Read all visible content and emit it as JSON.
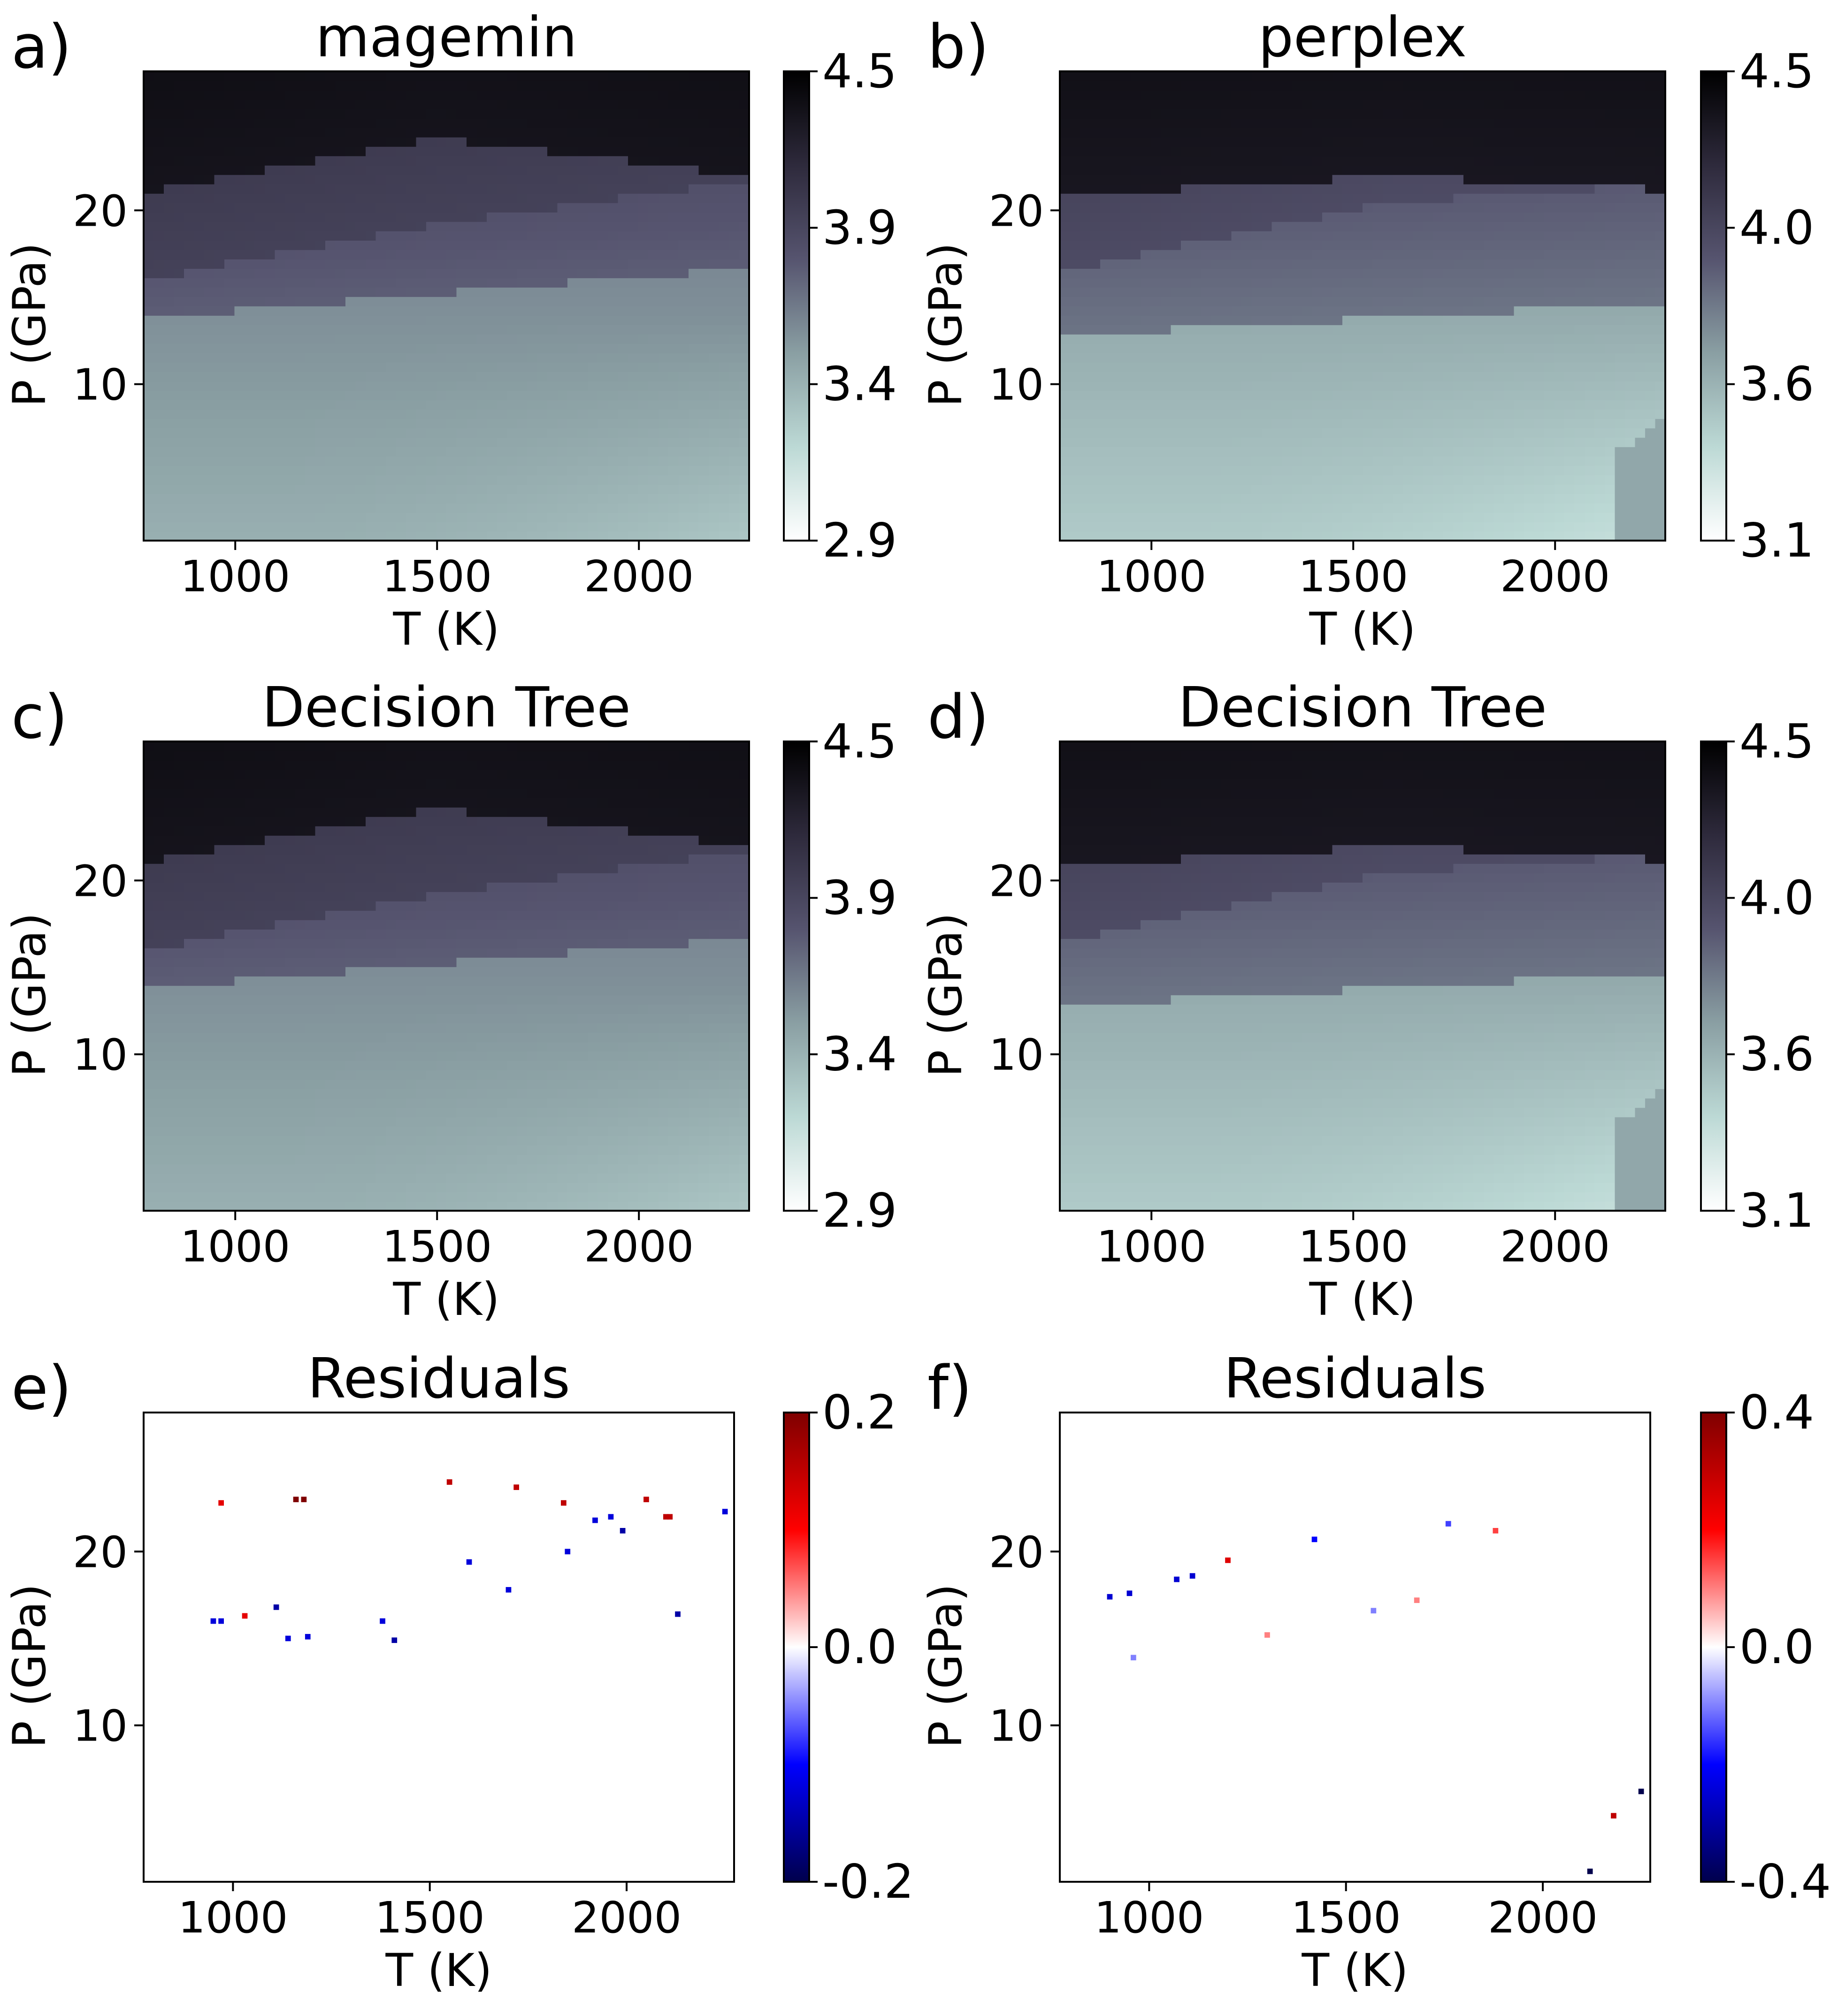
{
  "colors": {
    "density_colormap": [
      "#ffffff",
      "#bcd9d5",
      "#8a9fa3",
      "#56546f",
      "#2e2a3c",
      "#000000"
    ],
    "residual_colormap": [
      "#00004c",
      "#0000ff",
      "#ffffff",
      "#ff0000",
      "#7f0000"
    ],
    "axes_frame": "#000000",
    "background": "#ffffff"
  },
  "chart_data": [
    {
      "type": "heatmap",
      "panel_label": "a)",
      "title": "magemin",
      "kind": "density",
      "xlabel": "T (K)",
      "ylabel": "P (GPa)",
      "xlim": [
        773,
        2273
      ],
      "ylim": [
        1,
        28
      ],
      "xticks": [
        1000,
        1500,
        2000
      ],
      "yticks": [
        10,
        20
      ],
      "colorbar": {
        "min": 2.9,
        "max": 4.5,
        "ticks": [
          "2.9",
          "3.4",
          "3.9",
          "4.5"
        ]
      }
    },
    {
      "type": "heatmap",
      "panel_label": "b)",
      "title": "perplex",
      "kind": "density",
      "xlabel": "T (K)",
      "ylabel": "P (GPa)",
      "xlim": [
        773,
        2273
      ],
      "ylim": [
        1,
        28
      ],
      "xticks": [
        1000,
        1500,
        2000
      ],
      "yticks": [
        10,
        20
      ],
      "colorbar": {
        "min": 3.1,
        "max": 4.5,
        "ticks": [
          "3.1",
          "3.6",
          "4.0",
          "4.5"
        ]
      }
    },
    {
      "type": "heatmap",
      "panel_label": "c)",
      "title": "Decision Tree",
      "kind": "density",
      "xlabel": "T (K)",
      "ylabel": "P (GPa)",
      "xlim": [
        773,
        2273
      ],
      "ylim": [
        1,
        28
      ],
      "xticks": [
        1000,
        1500,
        2000
      ],
      "yticks": [
        10,
        20
      ],
      "colorbar": {
        "min": 2.9,
        "max": 4.5,
        "ticks": [
          "2.9",
          "3.4",
          "3.9",
          "4.5"
        ]
      }
    },
    {
      "type": "heatmap",
      "panel_label": "d)",
      "title": "Decision Tree",
      "kind": "density",
      "xlabel": "T (K)",
      "ylabel": "P (GPa)",
      "xlim": [
        773,
        2273
      ],
      "ylim": [
        1,
        28
      ],
      "xticks": [
        1000,
        1500,
        2000
      ],
      "yticks": [
        10,
        20
      ],
      "colorbar": {
        "min": 3.1,
        "max": 4.5,
        "ticks": [
          "3.1",
          "3.6",
          "4.0",
          "4.5"
        ]
      }
    },
    {
      "type": "heatmap",
      "panel_label": "e)",
      "title": "Residuals",
      "kind": "residual",
      "xlabel": "T (K)",
      "ylabel": "P (GPa)",
      "xlim": [
        773,
        2273
      ],
      "ylim": [
        1,
        28
      ],
      "xticks": [
        1000,
        1500,
        2000
      ],
      "yticks": [
        10,
        20
      ],
      "colorbar": {
        "min": -0.2,
        "max": 0.2,
        "ticks": [
          "-0.2",
          "0.0",
          "0.2"
        ]
      },
      "notable_cells": [
        {
          "T": 1160,
          "P": 23.0,
          "v": 0.2
        },
        {
          "T": 1180,
          "P": 23.0,
          "v": 0.2
        },
        {
          "T": 1550,
          "P": 24.0,
          "v": 0.15
        },
        {
          "T": 1720,
          "P": 23.7,
          "v": 0.15
        },
        {
          "T": 1840,
          "P": 22.8,
          "v": 0.15
        },
        {
          "T": 2050,
          "P": 23.0,
          "v": 0.15
        },
        {
          "T": 2100,
          "P": 22.0,
          "v": 0.15
        },
        {
          "T": 2110,
          "P": 22.0,
          "v": 0.15
        },
        {
          "T": 2250,
          "P": 22.3,
          "v": -0.12
        },
        {
          "T": 1990,
          "P": 21.2,
          "v": -0.15
        },
        {
          "T": 1920,
          "P": 21.8,
          "v": -0.12
        },
        {
          "T": 1960,
          "P": 22.0,
          "v": -0.12
        },
        {
          "T": 950,
          "P": 16.0,
          "v": -0.12
        },
        {
          "T": 970,
          "P": 16.0,
          "v": -0.12
        },
        {
          "T": 1030,
          "P": 16.3,
          "v": 0.12
        },
        {
          "T": 1110,
          "P": 16.8,
          "v": -0.15
        },
        {
          "T": 1140,
          "P": 15.0,
          "v": -0.12
        },
        {
          "T": 1190,
          "P": 15.1,
          "v": -0.12
        },
        {
          "T": 1380,
          "P": 16.0,
          "v": -0.12
        },
        {
          "T": 1410,
          "P": 14.9,
          "v": -0.15
        },
        {
          "T": 1600,
          "P": 19.4,
          "v": -0.12
        },
        {
          "T": 1700,
          "P": 17.8,
          "v": -0.12
        },
        {
          "T": 2130,
          "P": 16.4,
          "v": -0.15
        },
        {
          "T": 970,
          "P": 22.8,
          "v": 0.12
        },
        {
          "T": 1850,
          "P": 20.0,
          "v": -0.12
        }
      ]
    },
    {
      "type": "heatmap",
      "panel_label": "f)",
      "title": "Residuals",
      "kind": "residual",
      "xlabel": "T (K)",
      "ylabel": "P (GPa)",
      "xlim": [
        773,
        2273
      ],
      "ylim": [
        1,
        28
      ],
      "xticks": [
        1000,
        1500,
        2000
      ],
      "yticks": [
        10,
        20
      ],
      "colorbar": {
        "min": -0.4,
        "max": 0.4,
        "ticks": [
          "-0.4",
          "0.0",
          "0.4"
        ]
      },
      "notable_cells": [
        {
          "T": 900,
          "P": 17.4,
          "v": -0.25
        },
        {
          "T": 950,
          "P": 17.6,
          "v": -0.25
        },
        {
          "T": 1070,
          "P": 18.4,
          "v": -0.25
        },
        {
          "T": 1110,
          "P": 18.6,
          "v": -0.25
        },
        {
          "T": 1200,
          "P": 19.5,
          "v": 0.25
        },
        {
          "T": 1420,
          "P": 20.7,
          "v": -0.2
        },
        {
          "T": 1760,
          "P": 21.6,
          "v": -0.15
        },
        {
          "T": 1880,
          "P": 21.2,
          "v": 0.15
        },
        {
          "T": 2180,
          "P": 4.8,
          "v": 0.3
        },
        {
          "T": 2250,
          "P": 6.2,
          "v": -0.4
        },
        {
          "T": 2120,
          "P": 1.6,
          "v": -0.4
        },
        {
          "T": 1300,
          "P": 15.2,
          "v": 0.1
        },
        {
          "T": 1570,
          "P": 16.6,
          "v": -0.1
        },
        {
          "T": 1680,
          "P": 17.2,
          "v": 0.1
        },
        {
          "T": 960,
          "P": 13.9,
          "v": -0.1
        }
      ]
    }
  ]
}
